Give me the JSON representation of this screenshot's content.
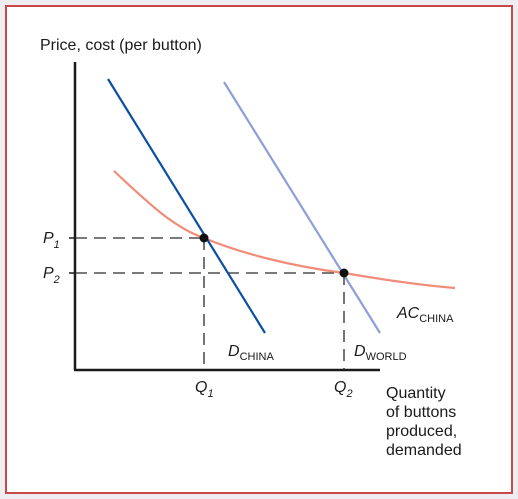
{
  "colors": {
    "background": "#ffffff",
    "frame_border": "#c9464a",
    "d_china": "#0b4fa3",
    "d_world": "#8f9ed6",
    "ac_china": "#f08c7a",
    "axis": "#1a1a1a",
    "guides": "#2a2a2a"
  },
  "chart_data": {
    "type": "line",
    "title": "",
    "ylabel": "Price, cost (per button)",
    "xlabel_lines": [
      "Quantity",
      "of buttons",
      "produced,",
      "demanded"
    ],
    "x_ticks": [
      {
        "main": "Q",
        "sub": "1"
      },
      {
        "main": "Q",
        "sub": "2"
      }
    ],
    "y_ticks": [
      {
        "main": "P",
        "sub": "1"
      },
      {
        "main": "P",
        "sub": "2"
      }
    ],
    "series": [
      {
        "name_main": "D",
        "name_sub": "CHINA",
        "kind": "linear"
      },
      {
        "name_main": "D",
        "name_sub": "WORLD",
        "kind": "linear"
      },
      {
        "name_main": "AC",
        "name_sub": "CHINA",
        "kind": "curve"
      }
    ],
    "points": [
      {
        "label": "Q1,P1"
      },
      {
        "label": "Q2,P2"
      }
    ]
  }
}
